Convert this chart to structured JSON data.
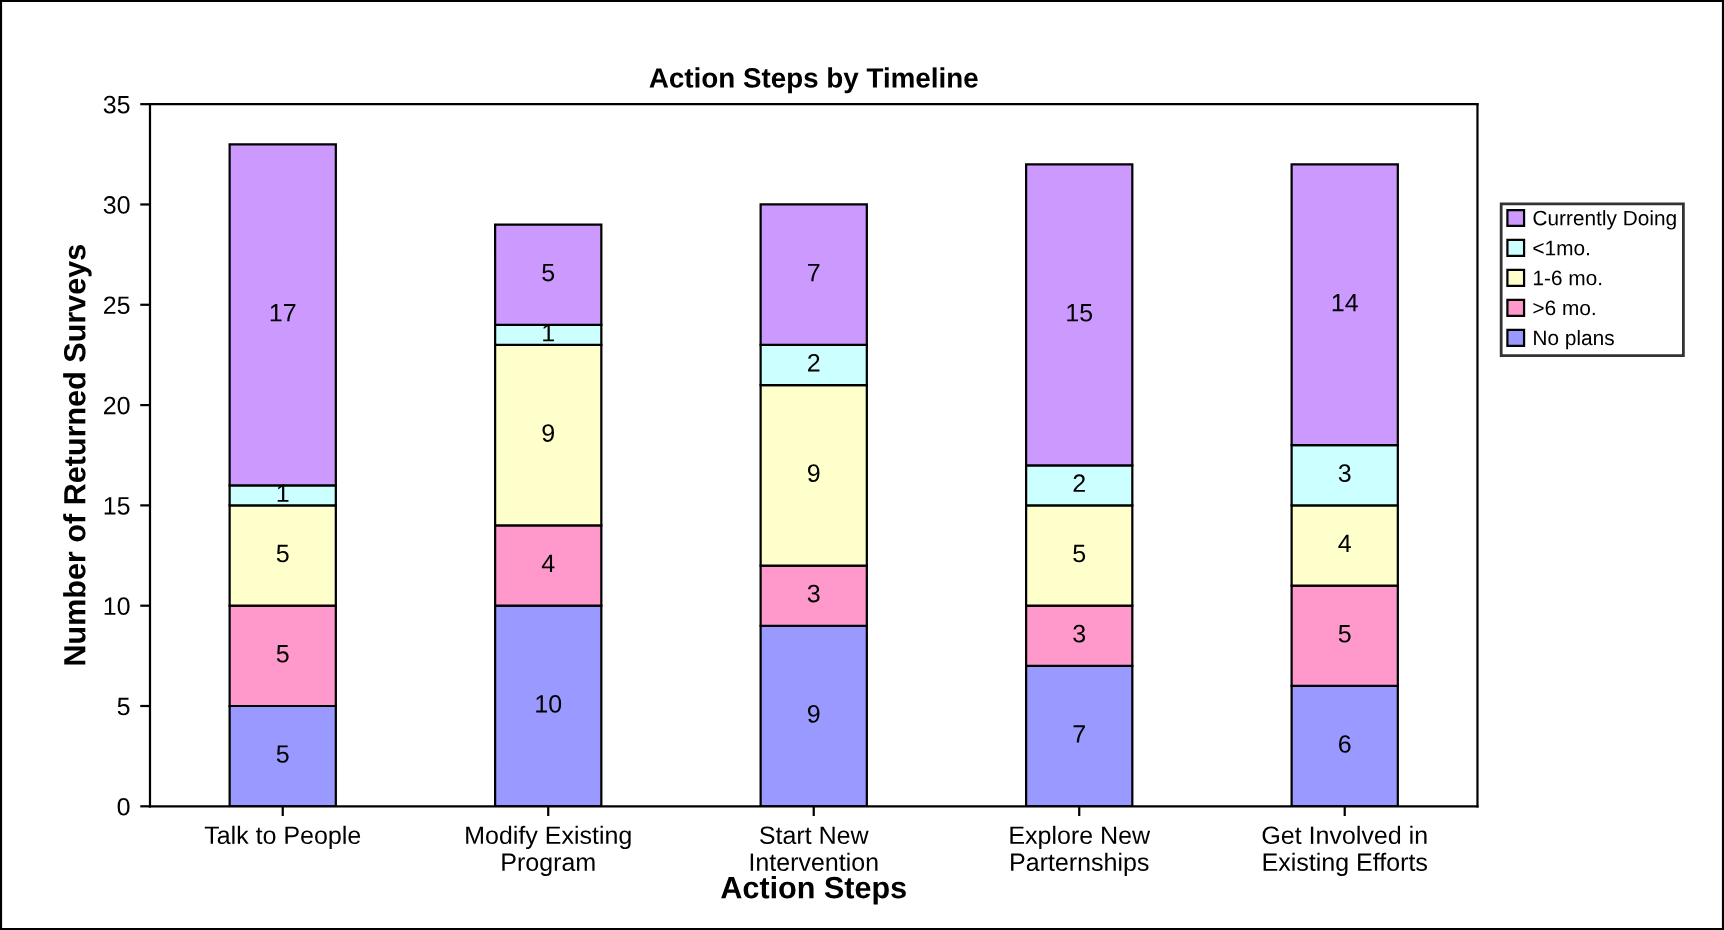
{
  "chart_data": {
    "type": "bar",
    "stacked": true,
    "title": "Action Steps by Timeline",
    "xlabel": "Action Steps",
    "ylabel": "Number of Returned Surveys",
    "categories": [
      "Talk to People",
      "Modify Existing\nProgram",
      "Start New\nIntervention",
      "Explore New\nParternships",
      "Get Involved in\nExisting Efforts"
    ],
    "series": [
      {
        "name": "No plans",
        "color": "#9999ff",
        "values": [
          5,
          10,
          9,
          7,
          6
        ]
      },
      {
        "name": ">6 mo.",
        "color": "#ff99cc",
        "values": [
          5,
          4,
          3,
          3,
          5
        ]
      },
      {
        "name": "1-6 mo.",
        "color": "#ffffcc",
        "values": [
          5,
          9,
          9,
          5,
          4
        ]
      },
      {
        "name": "<1mo.",
        "color": "#ccffff",
        "values": [
          1,
          1,
          2,
          2,
          3
        ]
      },
      {
        "name": "Currently Doing",
        "color": "#cc99ff",
        "values": [
          17,
          5,
          7,
          15,
          14
        ]
      }
    ],
    "ylim": [
      0,
      35
    ],
    "yticks": [
      0,
      5,
      10,
      15,
      20,
      25,
      30,
      35
    ],
    "data_labels": true,
    "legend": "right",
    "grid": false
  }
}
